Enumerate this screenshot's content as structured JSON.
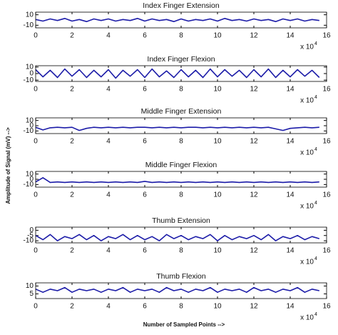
{
  "figure": {
    "ylabel": "Amplitude of Signal (mV) -->",
    "xlabel": "Number of Sampled Points -->"
  },
  "chart_data": [
    {
      "type": "line",
      "title": "Index Finger Extension",
      "color": "#1c1ca8",
      "xlim": [
        0,
        16
      ],
      "ylim": [
        -15,
        15
      ],
      "xticks": [
        0,
        2,
        4,
        6,
        8,
        10,
        12,
        14,
        16
      ],
      "yticks": [
        -10,
        10
      ],
      "x_multiplier": "x 10",
      "x_exponent": "4",
      "x": [
        0,
        0.4,
        0.8,
        1.2,
        1.6,
        2,
        2.4,
        2.8,
        3.2,
        3.6,
        4,
        4.4,
        4.8,
        5.2,
        5.6,
        6,
        6.4,
        6.8,
        7.2,
        7.6,
        8,
        8.4,
        8.8,
        9.2,
        9.6,
        10,
        10.4,
        10.8,
        11.2,
        11.6,
        12,
        12.4,
        12.8,
        13.2,
        13.6,
        14,
        14.4,
        14.8,
        15.2,
        15.6
      ],
      "values": [
        1,
        -2,
        2,
        -1,
        3,
        -2,
        1,
        -3,
        2,
        -1,
        2,
        -2,
        1,
        -1,
        3,
        -2,
        2,
        -1,
        1,
        -3,
        2,
        -2,
        1,
        -1,
        2,
        -2,
        3,
        -1,
        1,
        -2,
        2,
        -1,
        1,
        -3,
        2,
        -1,
        2,
        -2,
        1,
        -1
      ]
    },
    {
      "type": "line",
      "title": "Index Finger Flexion",
      "color": "#1c1ca8",
      "xlim": [
        0,
        16
      ],
      "ylim": [
        -12,
        12
      ],
      "xticks": [
        0,
        2,
        4,
        6,
        8,
        10,
        12,
        14,
        16
      ],
      "yticks": [
        -10,
        0,
        10
      ],
      "x_multiplier": "x 10",
      "x_exponent": "4",
      "x": [
        0,
        0.4,
        0.8,
        1.2,
        1.6,
        2,
        2.4,
        2.8,
        3.2,
        3.6,
        4,
        4.4,
        4.8,
        5.2,
        5.6,
        6,
        6.4,
        6.8,
        7.2,
        7.6,
        8,
        8.4,
        8.8,
        9.2,
        9.6,
        10,
        10.4,
        10.8,
        11.2,
        11.6,
        12,
        12.4,
        12.8,
        13.2,
        13.6,
        14,
        14.4,
        14.8,
        15.2,
        15.6
      ],
      "values": [
        6,
        -5,
        5,
        -6,
        7,
        -4,
        6,
        -6,
        5,
        -5,
        6,
        -7,
        5,
        -4,
        6,
        -6,
        7,
        -5,
        4,
        -6,
        6,
        -5,
        5,
        -6,
        7,
        -5,
        6,
        -4,
        5,
        -6,
        6,
        -5,
        7,
        -6,
        5,
        -5,
        6,
        -4,
        5,
        -6
      ]
    },
    {
      "type": "line",
      "title": "Middle Finger Extension",
      "color": "#1c1ca8",
      "xlim": [
        0,
        16
      ],
      "ylim": [
        -15,
        15
      ],
      "xticks": [
        0,
        2,
        4,
        6,
        8,
        10,
        12,
        14,
        16
      ],
      "yticks": [
        -10,
        0,
        10
      ],
      "x_multiplier": "x 10",
      "x_exponent": "4",
      "x": [
        0,
        0.4,
        0.8,
        1.2,
        1.6,
        2,
        2.4,
        2.8,
        3.2,
        3.6,
        4,
        4.4,
        4.8,
        5.2,
        5.6,
        6,
        6.4,
        6.8,
        7.2,
        7.6,
        8,
        8.4,
        8.8,
        9.2,
        9.6,
        10,
        10.4,
        10.8,
        11.2,
        11.6,
        12,
        12.4,
        12.8,
        13.2,
        13.6,
        14,
        14.4,
        14.8,
        15.2,
        15.6
      ],
      "values": [
        -3,
        -8,
        -4,
        -3,
        -4,
        -3,
        -9,
        -5,
        -3,
        -4,
        -3,
        -4,
        -3,
        -4,
        -3,
        -3,
        -4,
        -3,
        -4,
        -3,
        -4,
        -3,
        -3,
        -4,
        -3,
        -4,
        -3,
        -4,
        -3,
        -4,
        -3,
        -4,
        -3,
        -6,
        -9,
        -5,
        -4,
        -3,
        -4,
        -3
      ]
    },
    {
      "type": "line",
      "title": "Middle Finger Flexion",
      "color": "#1c1ca8",
      "xlim": [
        0,
        16
      ],
      "ylim": [
        -15,
        15
      ],
      "xticks": [
        0,
        2,
        4,
        6,
        8,
        10,
        12,
        14,
        16
      ],
      "yticks": [
        -10,
        0,
        10
      ],
      "x_multiplier": "x 10",
      "x_exponent": "4",
      "x": [
        0,
        0.4,
        0.8,
        1.2,
        1.6,
        2,
        2.4,
        2.8,
        3.2,
        3.6,
        4,
        4.4,
        4.8,
        5.2,
        5.6,
        6,
        6.4,
        6.8,
        7.2,
        7.6,
        8,
        8.4,
        8.8,
        9.2,
        9.6,
        10,
        10.4,
        10.8,
        11.2,
        11.6,
        12,
        12.4,
        12.8,
        13.2,
        13.6,
        14,
        14.4,
        14.8,
        15.2,
        15.6
      ],
      "values": [
        -5,
        3,
        -6,
        -5,
        -6,
        -5,
        -6,
        -5,
        -6,
        -5,
        -6,
        -5,
        -6,
        -5,
        -6,
        -4,
        -6,
        -5,
        -6,
        -5,
        -6,
        -5,
        -6,
        -5,
        -6,
        -5,
        -6,
        -5,
        -6,
        -5,
        -6,
        -5,
        -6,
        -5,
        -6,
        -5,
        -6,
        -5,
        -6,
        -5
      ]
    },
    {
      "type": "line",
      "title": "Thumb Extension",
      "color": "#1c1ca8",
      "xlim": [
        0,
        16
      ],
      "ylim": [
        -12,
        3
      ],
      "xticks": [
        0,
        2,
        4,
        6,
        8,
        10,
        12,
        14,
        16
      ],
      "yticks": [
        -10,
        -5,
        0
      ],
      "x_multiplier": "x 10",
      "x_exponent": "4",
      "x": [
        0,
        0.4,
        0.8,
        1.2,
        1.6,
        2,
        2.4,
        2.8,
        3.2,
        3.6,
        4,
        4.4,
        4.8,
        5.2,
        5.6,
        6,
        6.4,
        6.8,
        7.2,
        7.6,
        8,
        8.4,
        8.8,
        9.2,
        9.6,
        10,
        10.4,
        10.8,
        11.2,
        11.6,
        12,
        12.4,
        12.8,
        13.2,
        13.6,
        14,
        14.4,
        14.8,
        15.2,
        15.6
      ],
      "values": [
        -5,
        -9,
        -4,
        -10,
        -6,
        -8,
        -4,
        -9,
        -5,
        -10,
        -6,
        -8,
        -4,
        -9,
        -5,
        -9,
        -6,
        -10,
        -4,
        -8,
        -5,
        -9,
        -6,
        -8,
        -4,
        -10,
        -5,
        -9,
        -6,
        -8,
        -5,
        -9,
        -4,
        -10,
        -6,
        -8,
        -5,
        -9,
        -6,
        -8
      ]
    },
    {
      "type": "line",
      "title": "Thumb Flexion",
      "color": "#1c1ca8",
      "xlim": [
        0,
        16
      ],
      "ylim": [
        2,
        12
      ],
      "xticks": [
        0,
        2,
        4,
        6,
        8,
        10,
        12,
        14,
        16
      ],
      "yticks": [
        5,
        10
      ],
      "x_multiplier": "x 10",
      "x_exponent": "4",
      "x": [
        0,
        0.4,
        0.8,
        1.2,
        1.6,
        2,
        2.4,
        2.8,
        3.2,
        3.6,
        4,
        4.4,
        4.8,
        5.2,
        5.6,
        6,
        6.4,
        6.8,
        7.2,
        7.6,
        8,
        8.4,
        8.8,
        9.2,
        9.6,
        10,
        10.4,
        10.8,
        11.2,
        11.6,
        12,
        12.4,
        12.8,
        13.2,
        13.6,
        14,
        14.4,
        14.8,
        15.2,
        15.6
      ],
      "values": [
        8,
        6,
        8,
        7,
        9,
        6,
        8,
        7,
        8,
        6,
        8,
        7,
        9,
        6,
        8,
        7,
        8,
        6,
        9,
        7,
        8,
        6,
        8,
        7,
        9,
        6,
        8,
        7,
        8,
        6,
        9,
        7,
        8,
        6,
        8,
        7,
        9,
        6,
        8,
        7
      ]
    }
  ]
}
